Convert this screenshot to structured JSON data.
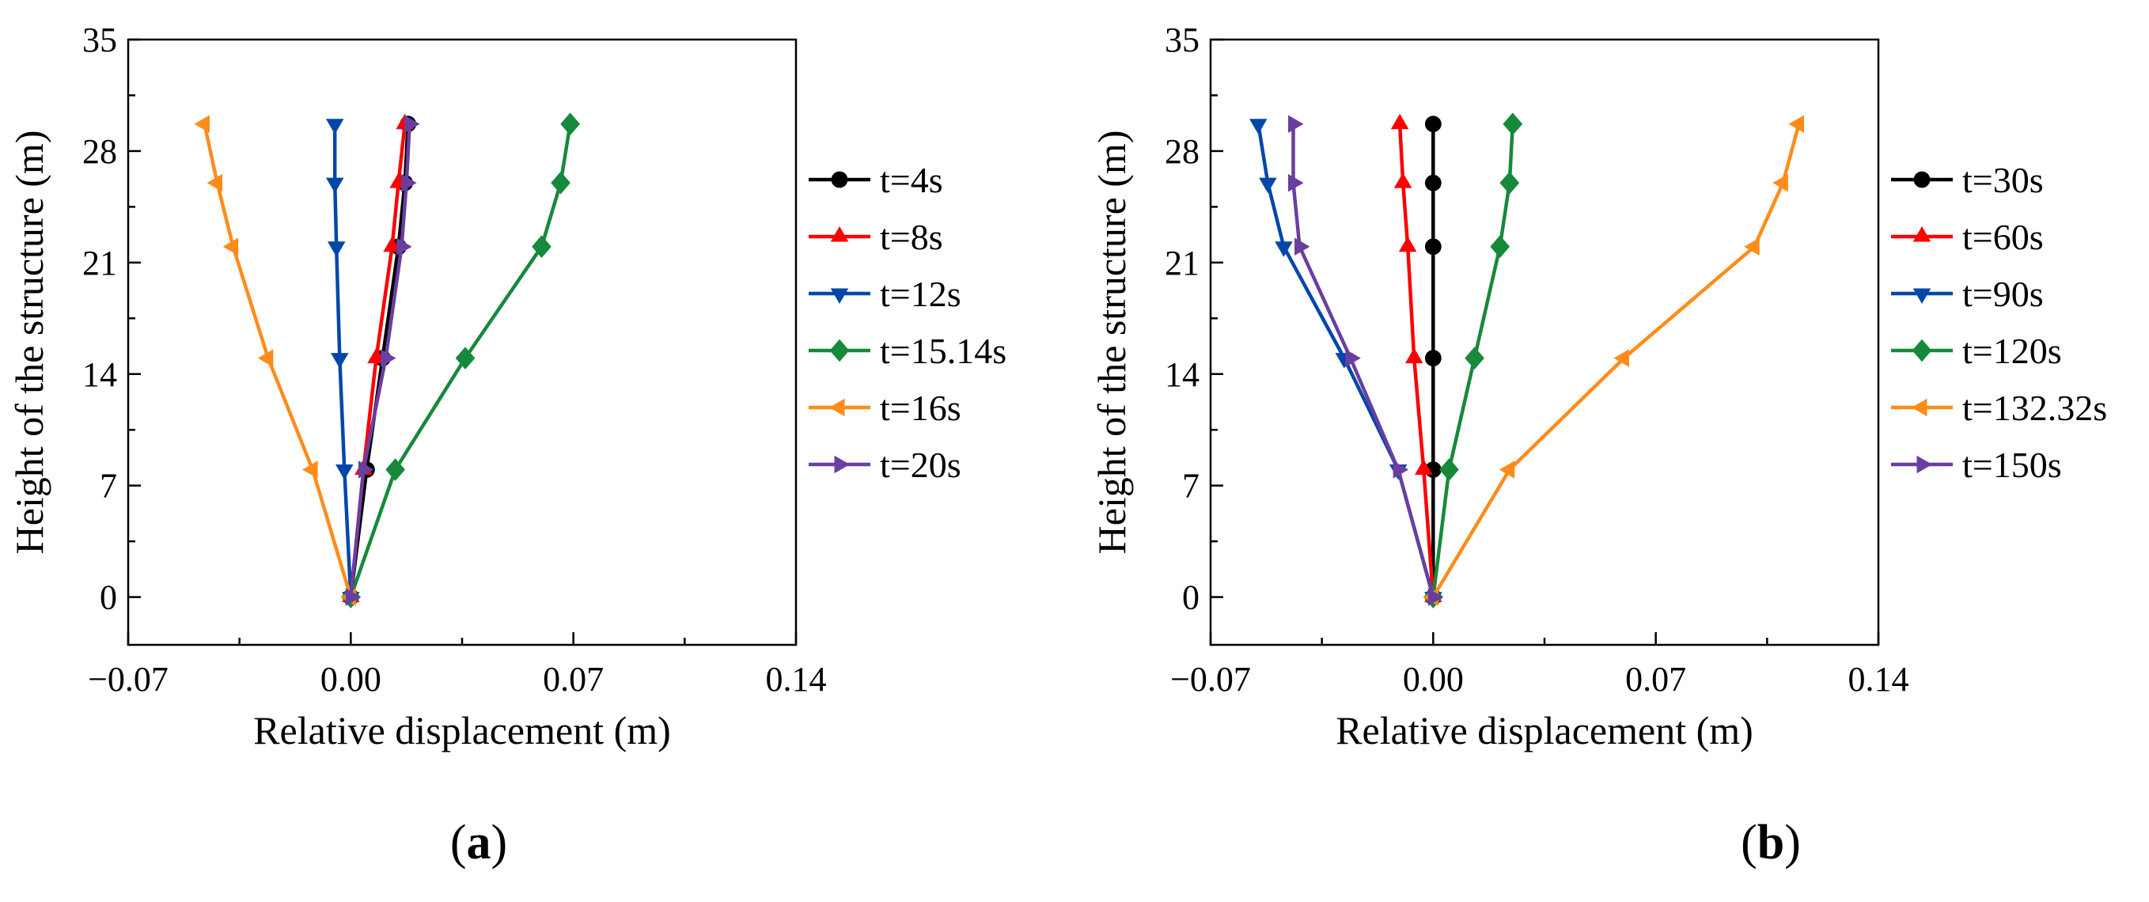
{
  "chart_data": [
    {
      "type": "line",
      "panel_label": "a",
      "xlabel": "Relative displacement (m)",
      "ylabel": "Height of the structure (m)",
      "xlim": [
        -0.07,
        0.14
      ],
      "ylim": [
        -3,
        35
      ],
      "xticks": [
        -0.07,
        0.0,
        0.07,
        0.14
      ],
      "xtick_labels": [
        "−0.07",
        "0.00",
        "0.07",
        "0.14"
      ],
      "yticks": [
        0,
        7,
        14,
        21,
        28,
        35
      ],
      "ytick_labels": [
        "0",
        "7",
        "14",
        "21",
        "28",
        "35"
      ],
      "y": [
        0,
        8,
        15,
        22,
        26,
        29.7
      ],
      "legend_position": "right",
      "series": [
        {
          "name": "t=4s",
          "marker": "circle",
          "color": "#000000",
          "x": [
            0,
            0.005,
            0.01,
            0.015,
            0.017,
            0.018
          ]
        },
        {
          "name": "t=8s",
          "marker": "triangle-up",
          "color": "#ff0000",
          "x": [
            0,
            0.004,
            0.008,
            0.013,
            0.015,
            0.017
          ]
        },
        {
          "name": "t=12s",
          "marker": "triangle-down",
          "color": "#0047ab",
          "x": [
            0,
            -0.002,
            -0.0035,
            -0.0045,
            -0.005,
            -0.005
          ]
        },
        {
          "name": "t=15.14s",
          "marker": "diamond",
          "color": "#16893a",
          "x": [
            0,
            0.014,
            0.036,
            0.06,
            0.066,
            0.069
          ]
        },
        {
          "name": "t=16s",
          "marker": "triangle-left",
          "color": "#ff8c1a",
          "x": [
            0,
            -0.012,
            -0.026,
            -0.037,
            -0.042,
            -0.046
          ]
        },
        {
          "name": "t=20s",
          "marker": "triangle-right",
          "color": "#6a3ea1",
          "x": [
            0,
            0.004,
            0.011,
            0.016,
            0.0175,
            0.0185
          ]
        }
      ]
    },
    {
      "type": "line",
      "panel_label": "b",
      "xlabel": "Relative displacement (m)",
      "ylabel": "Height of the structure (m)",
      "xlim": [
        -0.07,
        0.14
      ],
      "ylim": [
        -3,
        35
      ],
      "xticks": [
        -0.07,
        0.0,
        0.07,
        0.14
      ],
      "xtick_labels": [
        "−0.07",
        "0.00",
        "0.07",
        "0.14"
      ],
      "yticks": [
        0,
        7,
        14,
        21,
        28,
        35
      ],
      "ytick_labels": [
        "0",
        "7",
        "14",
        "21",
        "28",
        "35"
      ],
      "y": [
        0,
        8,
        15,
        22,
        26,
        29.7
      ],
      "legend_position": "right",
      "series": [
        {
          "name": "t=30s",
          "marker": "circle",
          "color": "#000000",
          "x": [
            0,
            0,
            0,
            0,
            0,
            0
          ]
        },
        {
          "name": "t=60s",
          "marker": "triangle-up",
          "color": "#ff0000",
          "x": [
            0,
            -0.003,
            -0.006,
            -0.008,
            -0.0095,
            -0.0105
          ]
        },
        {
          "name": "t=90s",
          "marker": "triangle-down",
          "color": "#0047ab",
          "x": [
            0,
            -0.011,
            -0.028,
            -0.047,
            -0.052,
            -0.055
          ]
        },
        {
          "name": "t=120s",
          "marker": "diamond",
          "color": "#16893a",
          "x": [
            0,
            0.005,
            0.013,
            0.021,
            0.024,
            0.025
          ]
        },
        {
          "name": "t=132.32s",
          "marker": "triangle-left",
          "color": "#ff8c1a",
          "x": [
            0,
            0.024,
            0.06,
            0.101,
            0.11,
            0.115
          ]
        },
        {
          "name": "t=150s",
          "marker": "triangle-right",
          "color": "#6a3ea1",
          "x": [
            0,
            -0.011,
            -0.026,
            -0.042,
            -0.044,
            -0.044
          ]
        }
      ]
    }
  ]
}
